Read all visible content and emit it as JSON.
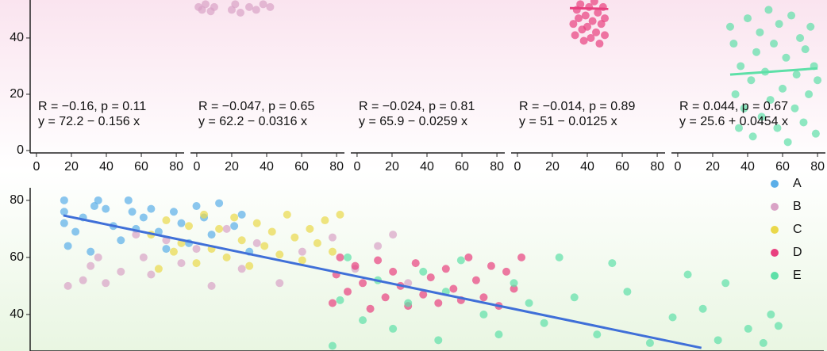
{
  "chart_data": [
    {
      "type": "scatter",
      "xlim": [
        -3.6,
        84.5
      ],
      "ylim": [
        -0.85,
        53.5
      ],
      "xticks": [
        0,
        20,
        40,
        60,
        80
      ],
      "yticks": [
        0,
        20,
        40
      ],
      "annotations": [
        "R = −0.16, p = 0.11",
        "y = 72.2 − 0.156 x"
      ],
      "series": []
    },
    {
      "type": "scatter",
      "xlim": [
        -3.6,
        84.5
      ],
      "ylim": [
        -0.85,
        53.5
      ],
      "xticks": [
        0,
        20,
        40,
        60,
        80
      ],
      "annotations": [
        "R = −0.047, p = 0.65",
        "y = 62.2 − 0.0316 x"
      ],
      "series": [
        {
          "color": "#d9a3c6",
          "x": [
            1,
            3,
            5,
            8,
            10,
            20,
            22,
            25,
            30,
            34,
            38,
            42
          ],
          "values": [
            51,
            50,
            52,
            49.5,
            51,
            50,
            52,
            49,
            51,
            50,
            52,
            51
          ]
        }
      ]
    },
    {
      "type": "scatter",
      "xlim": [
        -3.6,
        84.5
      ],
      "ylim": [
        -0.85,
        53.5
      ],
      "xticks": [
        0,
        20,
        40,
        60,
        80
      ],
      "annotations": [
        "R = −0.024, p = 0.81",
        "y = 65.9 − 0.0259 x"
      ],
      "series": []
    },
    {
      "type": "scatter",
      "xlim": [
        -3.6,
        84.5
      ],
      "ylim": [
        -0.85,
        53.5
      ],
      "xticks": [
        0,
        20,
        40,
        60,
        80
      ],
      "annotations": [
        "R = −0.014, p = 0.89",
        "y = 51 − 0.0125 x"
      ],
      "series": [
        {
          "color": "#e8407f",
          "x": [
            32,
            33,
            34,
            35,
            36,
            37,
            38,
            39,
            40,
            41,
            42,
            43,
            44,
            45,
            46,
            47,
            48,
            49,
            50,
            50
          ],
          "values": [
            45,
            41,
            50,
            47,
            52,
            43,
            39,
            48,
            44,
            51,
            40,
            46,
            53,
            42,
            49,
            38,
            45,
            51,
            41,
            47
          ]
        }
      ],
      "trend": {
        "color": "#e8407f",
        "x": [
          30,
          52
        ],
        "values": [
          50.6,
          50.35
        ]
      }
    },
    {
      "type": "scatter",
      "xlim": [
        -3.6,
        84.5
      ],
      "ylim": [
        -0.85,
        53.5
      ],
      "xticks": [
        0,
        20,
        40,
        60,
        80
      ],
      "annotations": [
        "R = 0.044, p = 0.67",
        "y = 25.6 + 0.0454 x"
      ],
      "series": [
        {
          "color": "#5ee0a8",
          "x": [
            30,
            32,
            33,
            35,
            36,
            38,
            40,
            42,
            43,
            45,
            47,
            48,
            50,
            52,
            53,
            55,
            57,
            58,
            60,
            62,
            63,
            65,
            67,
            68,
            70,
            72,
            73,
            75,
            76,
            78,
            79,
            80
          ],
          "values": [
            44,
            38,
            20,
            8,
            30,
            15,
            47,
            25,
            5,
            35,
            42,
            12,
            28,
            50,
            18,
            38,
            8,
            45,
            22,
            33,
            3,
            48,
            15,
            27,
            40,
            10,
            36,
            20,
            44,
            30,
            6,
            25
          ]
        }
      ],
      "trend": {
        "color": "#5ee0a8",
        "x": [
          30,
          80
        ],
        "values": [
          27,
          29.2
        ]
      }
    },
    {
      "type": "scatter",
      "xlim": [
        0,
        105
      ],
      "ylim": [
        27.2,
        84.4
      ],
      "yticks": [
        40,
        60,
        80
      ],
      "series": [
        {
          "name": "A",
          "color": "#5aaee8",
          "x": [
            4.5,
            4.5,
            4.5,
            5,
            6,
            7,
            8,
            8.5,
            9,
            10,
            11,
            12,
            13,
            13.5,
            14,
            15,
            16,
            17,
            18,
            19,
            20,
            21,
            22,
            23,
            24,
            25,
            27,
            28,
            29
          ],
          "values": [
            80,
            76,
            72,
            64,
            69,
            74,
            62,
            78,
            80,
            77,
            71,
            66,
            80,
            76,
            70,
            74,
            77,
            69,
            63,
            76,
            72,
            65,
            78,
            74,
            68,
            79,
            71,
            75,
            62
          ]
        },
        {
          "name": "B",
          "color": "#d9a3c6",
          "x": [
            5,
            7,
            8,
            9,
            10,
            12,
            14,
            15,
            16,
            18,
            20,
            22,
            24,
            26,
            28,
            30,
            33,
            36,
            40,
            43,
            46,
            48,
            50
          ],
          "values": [
            50,
            52,
            57,
            60,
            51,
            55,
            68,
            60,
            54,
            66,
            58,
            63,
            50,
            70,
            56,
            65,
            51,
            62,
            67,
            56,
            64,
            68,
            51
          ]
        },
        {
          "name": "C",
          "color": "#ead84a",
          "x": [
            16,
            17,
            18,
            19,
            20,
            21,
            22,
            23,
            24,
            25,
            26,
            27,
            28,
            29,
            30,
            31,
            32,
            33,
            34,
            35,
            36,
            37,
            38,
            39,
            40,
            41
          ],
          "values": [
            68,
            56,
            73,
            62,
            65,
            71,
            58,
            75,
            63,
            70,
            60,
            74,
            66,
            57,
            72,
            64,
            69,
            61,
            75,
            67,
            59,
            70,
            65,
            73,
            62,
            75
          ]
        },
        {
          "name": "D",
          "color": "#e8407f",
          "x": [
            40,
            40.5,
            41,
            42,
            43,
            44,
            45,
            46,
            47,
            48,
            49,
            50,
            51,
            52,
            53,
            54,
            55,
            56,
            57,
            58,
            59,
            60,
            61,
            62,
            63,
            64,
            65
          ],
          "values": [
            44,
            54,
            60,
            48,
            57,
            51,
            42,
            59,
            46,
            55,
            50,
            43,
            58,
            47,
            53,
            44,
            56,
            49,
            45,
            60,
            52,
            46,
            57,
            43,
            55,
            49,
            60
          ]
        },
        {
          "name": "E",
          "color": "#5ee0a8",
          "x": [
            40,
            41,
            42,
            44,
            46,
            48,
            50,
            52,
            54,
            55,
            57,
            60,
            62,
            64,
            66,
            68,
            70,
            72,
            75,
            77,
            79,
            82,
            85,
            87,
            89,
            91,
            92,
            95,
            97,
            98,
            99
          ],
          "values": [
            29,
            45,
            60,
            38,
            52,
            35,
            44,
            55,
            31,
            48,
            59,
            40,
            33,
            51,
            44,
            37,
            60,
            46,
            33,
            58,
            48,
            30,
            39,
            54,
            42,
            31,
            51,
            35,
            30,
            40,
            36
          ]
        }
      ],
      "trend": {
        "color": "#3f6fd8",
        "x": [
          4.4,
          88.8
        ],
        "values": [
          74.7,
          28.3
        ]
      }
    }
  ]
}
